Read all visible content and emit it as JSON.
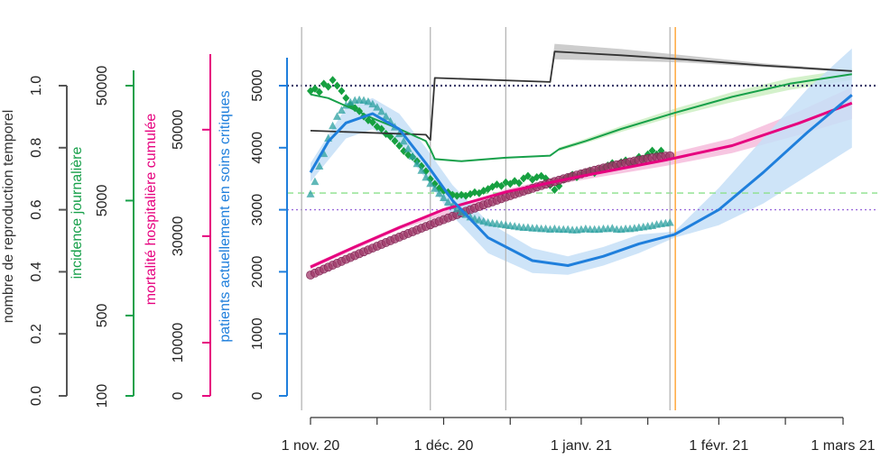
{
  "chart_data": {
    "type": "line",
    "x_axis": {
      "ticks": [
        "1 nov. 20",
        "1 déc. 20",
        "1 janv. 21",
        "1 févr. 21",
        "1 mars 21"
      ],
      "tick_days": [
        0,
        30,
        61,
        92,
        120
      ],
      "minor_tick_days": [
        0,
        15,
        30,
        45,
        61,
        76,
        92,
        107,
        120
      ],
      "range_days": [
        -2,
        126
      ]
    },
    "vertical_lines": {
      "gray_days": [
        -2,
        27,
        44,
        81
      ],
      "orange_day": 82
    },
    "axes": [
      {
        "id": "r",
        "label": "nombre de reproduction temporel",
        "color": "#555555",
        "ticks": [
          "0.0",
          "0.2",
          "0.4",
          "0.6",
          "0.8",
          "1.0"
        ],
        "tick_values": [
          0,
          0.2,
          0.4,
          0.6,
          0.8,
          1.0
        ],
        "range": [
          0,
          1.0
        ]
      },
      {
        "id": "inc",
        "label": "incidence journalière",
        "color": "#17a04a",
        "scale": "log",
        "ticks": [
          "100",
          "500",
          "5000",
          "50000"
        ],
        "tick_values": [
          100,
          500,
          5000,
          50000
        ],
        "range": [
          100,
          50000
        ]
      },
      {
        "id": "mort",
        "label": "mortalité hospitalière cumulée",
        "color": "#e6007e",
        "ticks": [
          "0",
          "10000",
          "30000",
          "50000"
        ],
        "tick_values": [
          0,
          10000,
          30000,
          50000
        ],
        "range": [
          0,
          55000
        ]
      },
      {
        "id": "icu",
        "label": "patients actuellement en soins critiques",
        "color": "#1f7fdc",
        "ticks": [
          "0",
          "1000",
          "2000",
          "3000",
          "4000",
          "5000"
        ],
        "tick_values": [
          0,
          1000,
          2000,
          3000,
          4000,
          5000
        ],
        "range": [
          0,
          5000
        ]
      }
    ],
    "reference_lines": [
      {
        "axis": "icu",
        "value": 5000,
        "style": "dotted",
        "color": "#3b3b6b"
      },
      {
        "axis": "icu",
        "value": 3000,
        "style": "dotted",
        "color": "#9b6bdc"
      },
      {
        "axis": "icu",
        "value": 3270,
        "style": "dashed",
        "color": "#8be08b"
      }
    ],
    "series": [
      {
        "id": "r_fit",
        "axis": "r",
        "color": "#333333",
        "band_color": "#c4c4c4",
        "points": [
          [
            0,
            0.855
          ],
          [
            26,
            0.842
          ],
          [
            27,
            0.825
          ],
          [
            28,
            1.025
          ],
          [
            54,
            1.012
          ],
          [
            55,
            1.11
          ],
          [
            70,
            1.098
          ],
          [
            84,
            1.085
          ],
          [
            102,
            1.065
          ],
          [
            122,
            1.047
          ]
        ],
        "band": [
          [
            0,
            0.855,
            0.855
          ],
          [
            26,
            0.842,
            0.842
          ],
          [
            28,
            1.025,
            1.025
          ],
          [
            54,
            1.012,
            1.012
          ],
          [
            55,
            1.085,
            1.135
          ],
          [
            70,
            1.08,
            1.118
          ],
          [
            84,
            1.075,
            1.098
          ],
          [
            102,
            1.06,
            1.072
          ],
          [
            122,
            1.044,
            1.05
          ]
        ]
      },
      {
        "id": "inc_fit",
        "axis": "inc",
        "color": "#17a04a",
        "band_color": "#cdeec2",
        "points": [
          [
            0,
            42000
          ],
          [
            4,
            39000
          ],
          [
            9,
            32000
          ],
          [
            14,
            26000
          ],
          [
            20,
            21000
          ],
          [
            26,
            16500
          ],
          [
            27,
            14000
          ],
          [
            28,
            11500
          ],
          [
            34,
            11000
          ],
          [
            44,
            11800
          ],
          [
            54,
            12300
          ],
          [
            56,
            14000
          ],
          [
            62,
            16500
          ],
          [
            70,
            21000
          ],
          [
            82,
            29000
          ],
          [
            95,
            40000
          ],
          [
            108,
            52000
          ],
          [
            122,
            63000
          ]
        ],
        "band": [
          [
            56,
            13500,
            14500
          ],
          [
            62,
            15800,
            17300
          ],
          [
            70,
            19800,
            22300
          ],
          [
            82,
            27000,
            31500
          ],
          [
            95,
            36000,
            44000
          ],
          [
            108,
            46000,
            58000
          ],
          [
            122,
            56000,
            70000
          ]
        ]
      },
      {
        "id": "inc_obs",
        "axis": "inc",
        "color": "#16a040",
        "marker": "diamond",
        "points": [
          [
            0,
            45000
          ],
          [
            1,
            47000
          ],
          [
            2,
            44000
          ],
          [
            3,
            52000
          ],
          [
            4,
            49000
          ],
          [
            5,
            56000
          ],
          [
            6,
            50000
          ],
          [
            7,
            45000
          ],
          [
            8,
            39000
          ],
          [
            9,
            34000
          ],
          [
            10,
            32000
          ],
          [
            11,
            30000
          ],
          [
            12,
            27000
          ],
          [
            13,
            25000
          ],
          [
            14,
            24000
          ],
          [
            15,
            22000
          ],
          [
            16,
            21000
          ],
          [
            17,
            19000
          ],
          [
            18,
            18000
          ],
          [
            19,
            16500
          ],
          [
            20,
            15000
          ],
          [
            21,
            13500
          ],
          [
            22,
            12500
          ],
          [
            23,
            12000
          ],
          [
            24,
            11000
          ],
          [
            25,
            10000
          ],
          [
            26,
            9000
          ],
          [
            27,
            7700
          ],
          [
            28,
            7000
          ],
          [
            29,
            6400
          ],
          [
            30,
            6100
          ],
          [
            31,
            5900
          ],
          [
            32,
            5600
          ],
          [
            33,
            5500
          ],
          [
            34,
            5600
          ],
          [
            35,
            5500
          ],
          [
            36,
            5700
          ],
          [
            37,
            5900
          ],
          [
            38,
            5800
          ],
          [
            39,
            6100
          ],
          [
            40,
            6300
          ],
          [
            41,
            6600
          ],
          [
            42,
            6900
          ],
          [
            43,
            6700
          ],
          [
            44,
            7200
          ],
          [
            45,
            7000
          ],
          [
            46,
            7400
          ],
          [
            47,
            7100
          ],
          [
            48,
            7800
          ],
          [
            49,
            8200
          ],
          [
            50,
            7600
          ],
          [
            51,
            8000
          ],
          [
            52,
            8200
          ],
          [
            53,
            7800
          ],
          [
            54,
            6800
          ],
          [
            55,
            6200
          ],
          [
            56,
            6700
          ],
          [
            57,
            7600
          ],
          [
            58,
            8000
          ],
          [
            59,
            8400
          ],
          [
            60,
            8000
          ],
          [
            61,
            8500
          ],
          [
            62,
            8800
          ],
          [
            63,
            9100
          ],
          [
            64,
            8700
          ],
          [
            65,
            9300
          ],
          [
            66,
            9500
          ],
          [
            67,
            10100
          ],
          [
            68,
            10600
          ],
          [
            69,
            9900
          ],
          [
            70,
            10800
          ],
          [
            71,
            11200
          ],
          [
            72,
            10400
          ],
          [
            73,
            10900
          ],
          [
            74,
            12000
          ],
          [
            75,
            11500
          ],
          [
            76,
            12600
          ],
          [
            77,
            13600
          ],
          [
            78,
            12600
          ],
          [
            79,
            13600
          ]
        ]
      },
      {
        "id": "mort_fit",
        "axis": "mort",
        "color": "#e6007e",
        "band_color": "#f6bcdc",
        "points": [
          [
            0,
            24200
          ],
          [
            10,
            28000
          ],
          [
            20,
            31600
          ],
          [
            30,
            35000
          ],
          [
            44,
            38300
          ],
          [
            60,
            41100
          ],
          [
            80,
            44300
          ],
          [
            95,
            47000
          ],
          [
            110,
            51200
          ],
          [
            122,
            55000
          ]
        ],
        "band": [
          [
            0,
            23800,
            24600
          ],
          [
            20,
            31200,
            32000
          ],
          [
            44,
            37800,
            38800
          ],
          [
            60,
            40400,
            41800
          ],
          [
            80,
            43200,
            45400
          ],
          [
            95,
            45600,
            48400
          ],
          [
            110,
            49000,
            53400
          ],
          [
            122,
            52000,
            58000
          ]
        ]
      },
      {
        "id": "mort_obs",
        "axis": "mort",
        "color": "#a03a6a",
        "marker": "circle",
        "points_from": 0,
        "points_to": 81,
        "start": 22700,
        "end": 45100
      },
      {
        "id": "icu_fit",
        "axis": "icu",
        "color": "#1f7fdc",
        "band_color": "#c5dff7",
        "points": [
          [
            0,
            3600
          ],
          [
            4,
            4100
          ],
          [
            8,
            4400
          ],
          [
            14,
            4550
          ],
          [
            20,
            4300
          ],
          [
            26,
            3750
          ],
          [
            32,
            3150
          ],
          [
            40,
            2550
          ],
          [
            50,
            2180
          ],
          [
            58,
            2100
          ],
          [
            66,
            2250
          ],
          [
            74,
            2450
          ],
          [
            82,
            2600
          ],
          [
            92,
            3000
          ],
          [
            102,
            3600
          ],
          [
            112,
            4250
          ],
          [
            122,
            4850
          ]
        ],
        "band": [
          [
            0,
            3450,
            3750
          ],
          [
            8,
            4150,
            4650
          ],
          [
            14,
            4300,
            4800
          ],
          [
            20,
            4050,
            4550
          ],
          [
            26,
            3500,
            4000
          ],
          [
            32,
            2900,
            3400
          ],
          [
            40,
            2300,
            2800
          ],
          [
            50,
            1980,
            2380
          ],
          [
            58,
            1950,
            2250
          ],
          [
            66,
            2100,
            2400
          ],
          [
            74,
            2300,
            2600
          ],
          [
            82,
            2550,
            2650
          ],
          [
            92,
            2750,
            3350
          ],
          [
            102,
            3100,
            4150
          ],
          [
            112,
            3550,
            4950
          ],
          [
            122,
            4000,
            5600
          ]
        ]
      },
      {
        "id": "icu_obs",
        "axis": "icu",
        "color": "#2ba0a0",
        "marker": "triangle",
        "points": [
          [
            0,
            3250
          ],
          [
            1,
            3450
          ],
          [
            2,
            3700
          ],
          [
            3,
            3900
          ],
          [
            4,
            4150
          ],
          [
            5,
            4350
          ],
          [
            6,
            4500
          ],
          [
            7,
            4600
          ],
          [
            8,
            4680
          ],
          [
            9,
            4730
          ],
          [
            10,
            4760
          ],
          [
            11,
            4770
          ],
          [
            12,
            4760
          ],
          [
            13,
            4740
          ],
          [
            14,
            4700
          ],
          [
            15,
            4650
          ],
          [
            16,
            4580
          ],
          [
            17,
            4500
          ],
          [
            18,
            4420
          ],
          [
            19,
            4330
          ],
          [
            20,
            4220
          ],
          [
            21,
            4100
          ],
          [
            22,
            3980
          ],
          [
            23,
            3860
          ],
          [
            24,
            3740
          ],
          [
            25,
            3630
          ],
          [
            26,
            3520
          ],
          [
            27,
            3420
          ],
          [
            28,
            3340
          ],
          [
            29,
            3260
          ],
          [
            30,
            3190
          ],
          [
            31,
            3120
          ],
          [
            32,
            3060
          ],
          [
            33,
            3010
          ],
          [
            34,
            2960
          ],
          [
            35,
            2920
          ],
          [
            36,
            2880
          ],
          [
            37,
            2850
          ],
          [
            38,
            2830
          ],
          [
            39,
            2810
          ],
          [
            40,
            2790
          ],
          [
            41,
            2780
          ],
          [
            42,
            2770
          ],
          [
            43,
            2760
          ],
          [
            44,
            2750
          ],
          [
            45,
            2740
          ],
          [
            46,
            2730
          ],
          [
            47,
            2720
          ],
          [
            48,
            2710
          ],
          [
            49,
            2710
          ],
          [
            50,
            2700
          ],
          [
            51,
            2700
          ],
          [
            52,
            2690
          ],
          [
            53,
            2690
          ],
          [
            54,
            2680
          ],
          [
            55,
            2690
          ],
          [
            56,
            2680
          ],
          [
            57,
            2680
          ],
          [
            58,
            2680
          ],
          [
            59,
            2670
          ],
          [
            60,
            2670
          ],
          [
            61,
            2680
          ],
          [
            62,
            2690
          ],
          [
            63,
            2680
          ],
          [
            64,
            2680
          ],
          [
            65,
            2680
          ],
          [
            66,
            2690
          ],
          [
            67,
            2690
          ],
          [
            68,
            2700
          ],
          [
            69,
            2680
          ],
          [
            70,
            2680
          ],
          [
            71,
            2690
          ],
          [
            72,
            2690
          ],
          [
            73,
            2700
          ],
          [
            74,
            2710
          ],
          [
            75,
            2720
          ],
          [
            76,
            2730
          ],
          [
            77,
            2740
          ],
          [
            78,
            2760
          ],
          [
            79,
            2770
          ],
          [
            80,
            2780
          ],
          [
            81,
            2790
          ]
        ]
      }
    ]
  }
}
